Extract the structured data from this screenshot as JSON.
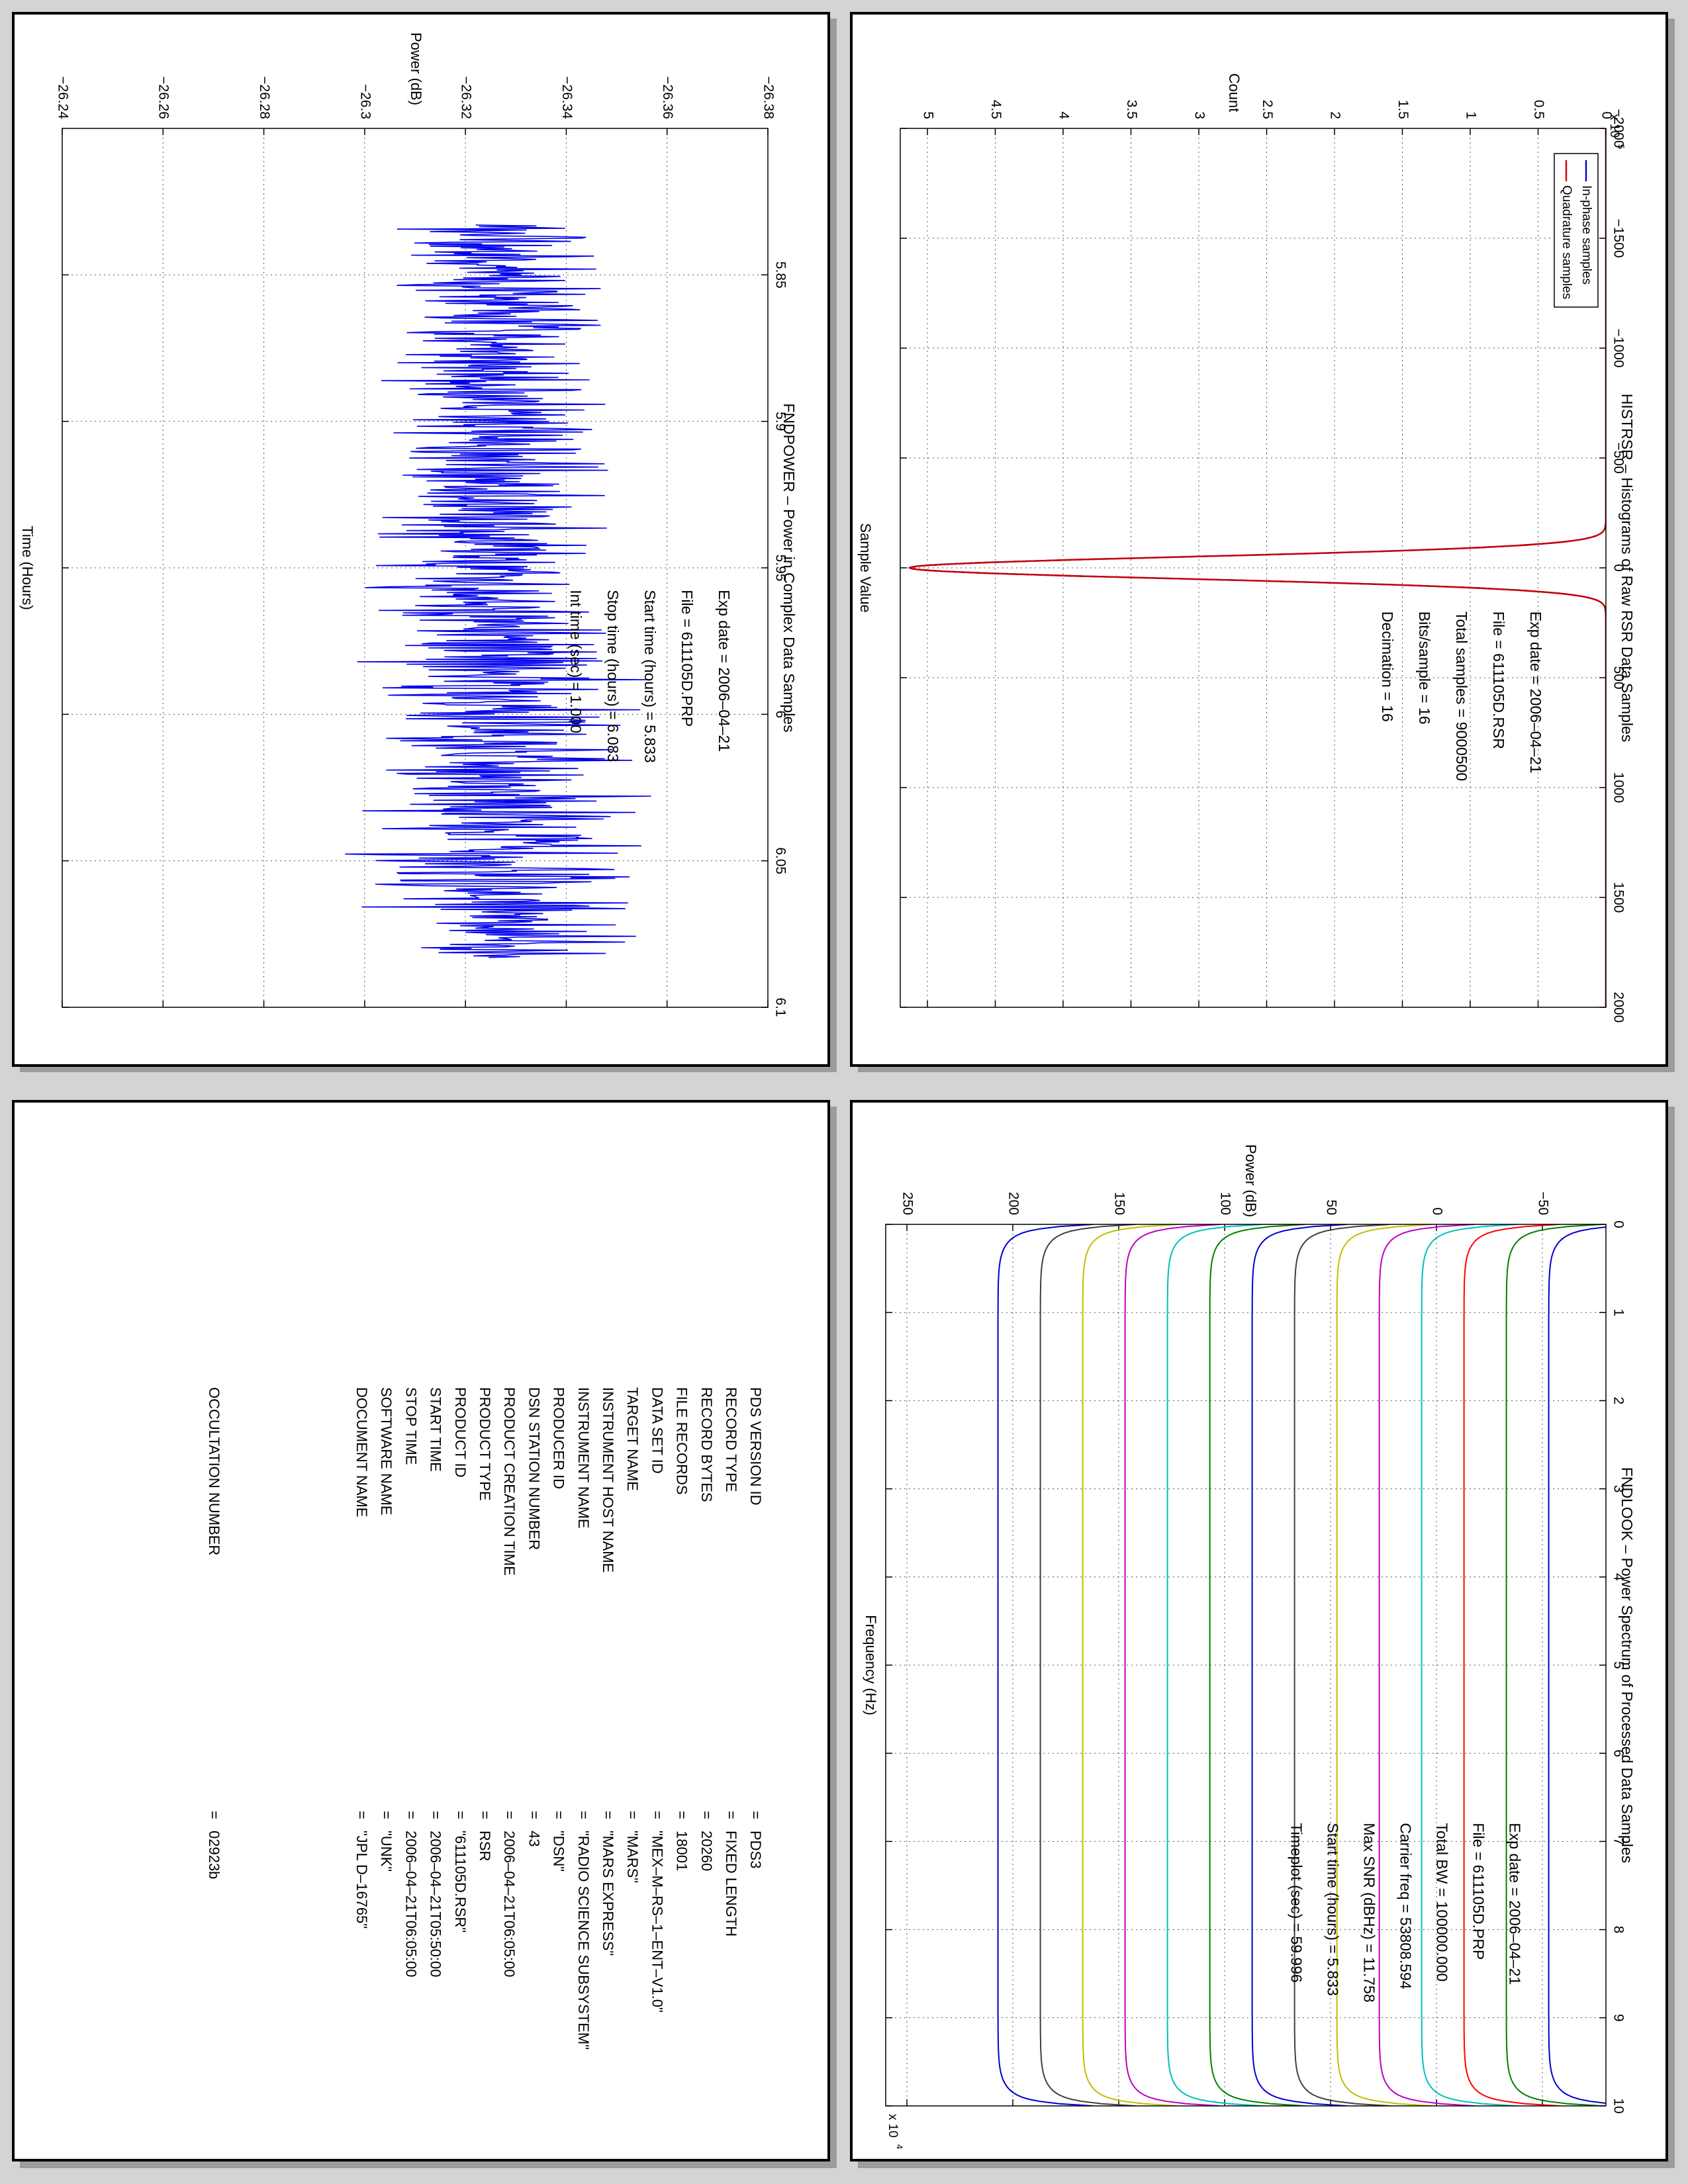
{
  "panels": {
    "histogram": {
      "title": "HISTRSR – Histograms of Raw RSR Data Samples",
      "xlabel": "Sample Value",
      "ylabel": "Count",
      "y_exponent": "x 10",
      "y_exponent_power": "5",
      "legend": [
        "In-phase samples",
        "Quadrature samples"
      ],
      "info": [
        {
          "label": "Exp date =",
          "value": "2006–04–21"
        },
        {
          "label": "File =",
          "value": "611105D.RSR"
        },
        {
          "label": "Total samples =",
          "value": "9000500"
        },
        {
          "label": "Bits/sample =",
          "value": "16"
        },
        {
          "label": "Decimation =",
          "value": "16"
        }
      ]
    },
    "power": {
      "title": "FNDPOWER – Power in Complex Data Samples",
      "xlabel": "Time (Hours)",
      "ylabel": "Power (dB)",
      "info": [
        {
          "label": "Exp date =",
          "value": "2006–04–21"
        },
        {
          "label": "File =",
          "value": "611105D.PRP"
        },
        {
          "label": "Start time (hours) =",
          "value": "5.833"
        },
        {
          "label": "Stop time (hours) =",
          "value": "6.083"
        },
        {
          "label": "Int time (sec) =",
          "value": "1.000"
        }
      ]
    },
    "spectrum": {
      "title": "FNDLOOK – Power Spectrum of Processed Data Samples",
      "xlabel": "Frequency (Hz)",
      "ylabel": "Power (dB)",
      "x_exponent": "x 10",
      "x_exponent_power": "4",
      "info": [
        {
          "label": "Exp date =",
          "value": "2006–04–21"
        },
        {
          "label": "File =",
          "value": "611105D.PRP"
        },
        {
          "label": "Total BW =",
          "value": "100000.000"
        },
        {
          "label": "Carrier freq =",
          "value": "53808.594"
        },
        {
          "label": "Max SNR (dBHz) =",
          "value": "11.758"
        },
        {
          "label": "Start time (hours) =",
          "value": "5.833"
        },
        {
          "label": "Timeplot (sec) =",
          "value": "59.996"
        }
      ]
    },
    "labels": {
      "rows": [
        {
          "key": "PDS VERSION ID",
          "value": "PDS3"
        },
        {
          "key": "RECORD TYPE",
          "value": "FIXED LENGTH"
        },
        {
          "key": "RECORD BYTES",
          "value": "20260"
        },
        {
          "key": "FILE RECORDS",
          "value": "18001"
        },
        {
          "key": "DATA SET ID",
          "value": "\"MEX–M–RS–1–ENT–V1.0\""
        },
        {
          "key": "TARGET NAME",
          "value": "\"MARS\""
        },
        {
          "key": "INSTRUMENT HOST NAME",
          "value": "\"MARS EXPRESS\""
        },
        {
          "key": "INSTRUMENT NAME",
          "value": "\"RADIO SCIENCE SUBSYSTEM\""
        },
        {
          "key": "PRODUCER ID",
          "value": "\"DSN\""
        },
        {
          "key": "DSN STATION NUMBER",
          "value": "43"
        },
        {
          "key": "PRODUCT CREATION TIME",
          "value": "2006–04–21T06:05:00"
        },
        {
          "key": "PRODUCT TYPE",
          "value": "RSR"
        },
        {
          "key": "PRODUCT ID",
          "value": "\"611105D.RSR\""
        },
        {
          "key": "START TIME",
          "value": "2006–04–21T05:50:00"
        },
        {
          "key": "STOP TIME",
          "value": "2006–04–21T06:05:00"
        },
        {
          "key": "SOFTWARE NAME",
          "value": "\"UNK\""
        },
        {
          "key": "DOCUMENT NAME",
          "value": "\"JPL D–16765\""
        }
      ],
      "separator": "=",
      "occultation": {
        "key": "OCCULTATION NUMBER",
        "value": "02923b"
      }
    }
  },
  "chart_data": [
    {
      "type": "line",
      "title": "HISTRSR – Histograms of Raw RSR Data Samples",
      "xlabel": "Sample Value",
      "ylabel": "Count",
      "xlim": [
        -2000,
        2000
      ],
      "ylim": [
        0,
        520000
      ],
      "xticks": [
        -2000,
        -1500,
        -1000,
        -500,
        0,
        500,
        1000,
        1500,
        2000
      ],
      "yticks": [
        0,
        0.5,
        1,
        1.5,
        2,
        2.5,
        3,
        3.5,
        4,
        4.5,
        5
      ],
      "y_scale": 100000,
      "grid": true,
      "legend": "top-right",
      "series": [
        {
          "name": "In-phase samples",
          "color": "#0000cc",
          "peak_x": 0,
          "peak_count": 513000,
          "std": 50
        },
        {
          "name": "Quadrature samples",
          "color": "#cc0000",
          "peak_x": 0,
          "peak_count": 513000,
          "std": 50
        }
      ]
    },
    {
      "type": "line",
      "title": "FNDPOWER – Power in Complex Data Samples",
      "xlabel": "Time (Hours)",
      "ylabel": "Power (dB)",
      "xlim": [
        5.8,
        6.1
      ],
      "ylim": [
        -26.38,
        -26.24
      ],
      "xticks": [
        5.85,
        5.9,
        5.95,
        6,
        6.05,
        6.1
      ],
      "yticks": [
        -26.38,
        -26.36,
        -26.34,
        -26.32,
        -26.3,
        -26.28,
        -26.26,
        -26.24
      ],
      "grid": true,
      "series": [
        {
          "name": "",
          "color": "#0000ee",
          "x_start": 5.833,
          "x_end": 6.083,
          "samples": 900,
          "mean": -26.326,
          "spread": 0.01
        }
      ]
    },
    {
      "type": "line",
      "title": "FNDLOOK – Power Spectrum of Processed Data Samples",
      "xlabel": "Frequency (Hz)",
      "ylabel": "Power (dB)",
      "xlim": [
        0,
        100000
      ],
      "ylim": [
        -80,
        260
      ],
      "xticks": [
        0,
        1,
        2,
        3,
        4,
        5,
        6,
        7,
        8,
        9,
        10
      ],
      "x_scale": 10000,
      "yticks": [
        -50,
        0,
        50,
        100,
        150,
        200,
        250
      ],
      "grid": true,
      "series": [
        {
          "name": "",
          "color": "#0000cc",
          "level": -53
        },
        {
          "name": "",
          "color": "#008000",
          "level": -33
        },
        {
          "name": "",
          "color": "#ff0000",
          "level": -13
        },
        {
          "name": "",
          "color": "#00bfbf",
          "level": 7
        },
        {
          "name": "",
          "color": "#bf00bf",
          "level": 27
        },
        {
          "name": "",
          "color": "#bfbf00",
          "level": 47
        },
        {
          "name": "",
          "color": "#404040",
          "level": 67
        },
        {
          "name": "",
          "color": "#0000cc",
          "level": 87
        },
        {
          "name": "",
          "color": "#008000",
          "level": 107
        },
        {
          "name": "",
          "color": "#00bfbf",
          "level": 127
        },
        {
          "name": "",
          "color": "#bf00bf",
          "level": 147
        },
        {
          "name": "",
          "color": "#bfbf00",
          "level": 167
        },
        {
          "name": "",
          "color": "#404040",
          "level": 187
        },
        {
          "name": "",
          "color": "#0000cc",
          "level": 207
        }
      ]
    }
  ]
}
